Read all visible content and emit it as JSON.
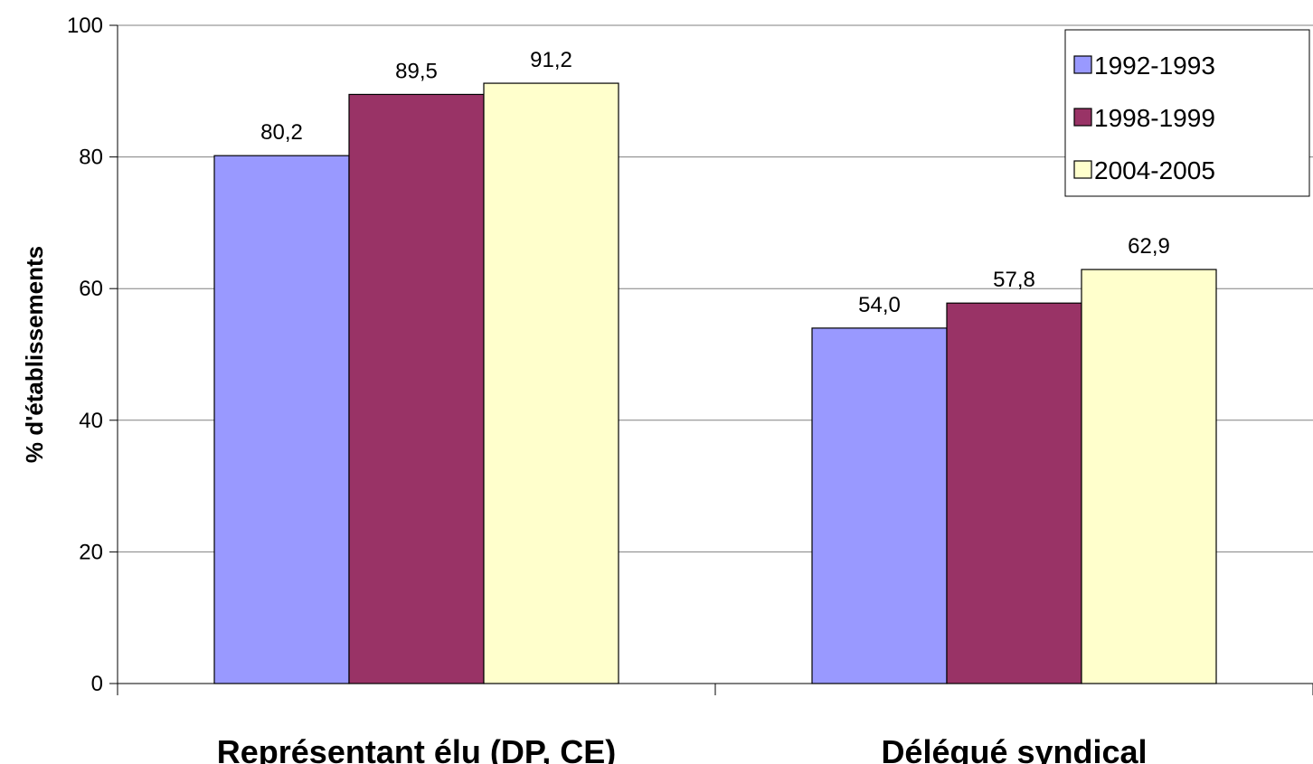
{
  "chart_data": {
    "type": "bar",
    "title": "",
    "xlabel": "",
    "ylabel": "% d'établissements",
    "ylim": [
      0,
      100
    ],
    "yticks": [
      0,
      20,
      40,
      60,
      80,
      100
    ],
    "categories": [
      "Représentant élu (DP, CE)",
      "Délégué syndical"
    ],
    "series": [
      {
        "name": "1992-1993",
        "values": [
          80.2,
          54.0
        ],
        "labels": [
          "80,2",
          "54,0"
        ],
        "color": "#9999ff"
      },
      {
        "name": "1998-1999",
        "values": [
          89.5,
          57.8
        ],
        "labels": [
          "89,5",
          "57,8"
        ],
        "color": "#993366"
      },
      {
        "name": "2004-2005",
        "values": [
          91.2,
          62.9
        ],
        "labels": [
          "91,2",
          "62,9"
        ],
        "color": "#ffffcc"
      }
    ],
    "grid": true,
    "legend_position": "top-right"
  }
}
